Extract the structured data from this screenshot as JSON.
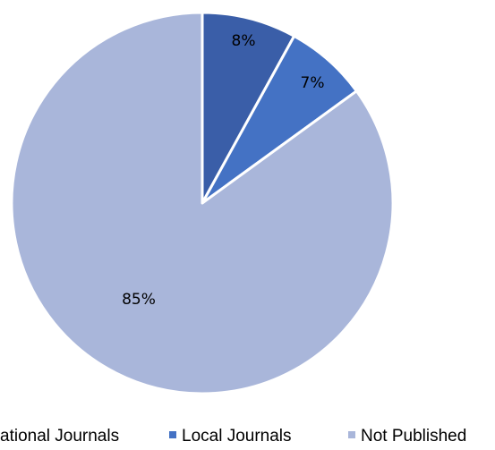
{
  "chart_data": {
    "type": "pie",
    "title": "",
    "slices": [
      {
        "name": "International Journals",
        "value": 8,
        "label": "8%",
        "color": "#3a5ea8"
      },
      {
        "name": "Local Journals",
        "value": 7,
        "label": "7%",
        "color": "#4472c4"
      },
      {
        "name": "Not Published",
        "value": 85,
        "label": "85%",
        "color": "#a9b6da"
      }
    ],
    "legend_position": "bottom",
    "legend": [
      "International Journals",
      "Local Journals",
      "Not Published"
    ],
    "legend_cropped_visible_text": [
      "ational Journals",
      "Local Journals",
      "Not Published"
    ]
  }
}
